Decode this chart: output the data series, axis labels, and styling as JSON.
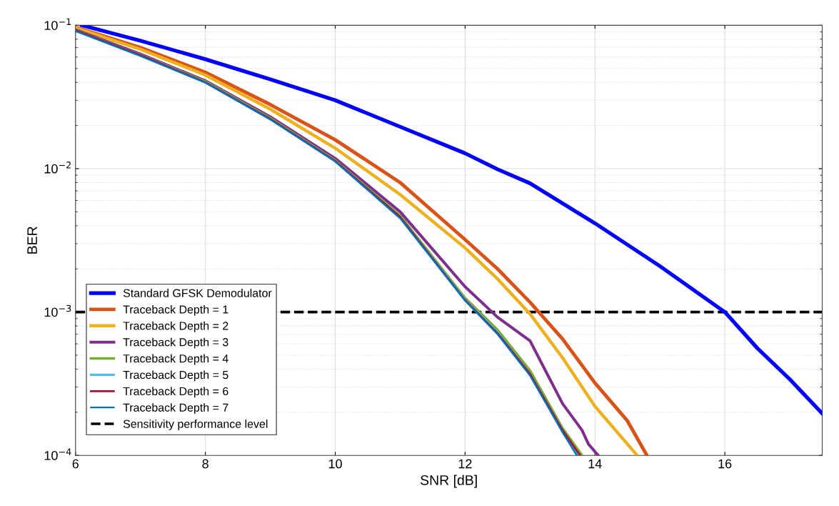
{
  "chart_data": {
    "type": "line",
    "xlabel": "SNR [dB]",
    "ylabel": "BER",
    "log": "y",
    "grid": true,
    "legend": "bottom left",
    "line_style": "solid",
    "marker": "none",
    "xlim": [
      6,
      17.5
    ],
    "xticks": [
      6,
      8,
      10,
      12,
      14,
      16
    ],
    "ylim": [
      0.0001,
      0.1
    ],
    "yticks": [
      {
        "value": 0.0001,
        "label": "10$^{−4}$"
      },
      {
        "value": 0.001,
        "label": "10$^{−3}$"
      },
      {
        "value": 0.01,
        "label": "10$^{−2}$"
      },
      {
        "value": 0.1,
        "label": "10$^{−1}$"
      }
    ],
    "series": [
      {
        "name": "Standard GFSK Demodulator",
        "color": "#0000ff",
        "x": [
          6.1,
          7,
          8,
          9,
          10,
          11,
          12,
          12.5,
          13,
          14,
          15,
          16,
          16.5,
          17,
          17.5
        ],
        "values": [
          0.1,
          0.078,
          0.058,
          0.042,
          0.03,
          0.0196,
          0.0128,
          0.0099,
          0.0079,
          0.00416,
          0.00209,
          0.001,
          0.00056,
          0.00034,
          0.000196
        ]
      },
      {
        "name": "Traceback Depth = 1",
        "color": "#d95319",
        "x": [
          6,
          7,
          8,
          9,
          10,
          11,
          12,
          12.5,
          13,
          13.5,
          14,
          14.5,
          14.8
        ],
        "values": [
          0.097,
          0.07,
          0.047,
          0.028,
          0.0159,
          0.008,
          0.0032,
          0.002,
          0.00117,
          0.00065,
          0.00032,
          0.000174,
          0.0001
        ]
      },
      {
        "name": "Traceback Depth = 2",
        "color": "#edb120",
        "x": [
          6,
          7,
          8,
          9,
          10,
          11,
          12,
          12.5,
          13,
          13.5,
          14,
          14.65
        ],
        "values": [
          0.096,
          0.068,
          0.045,
          0.026,
          0.0139,
          0.0066,
          0.0028,
          0.0017,
          0.00097,
          0.00048,
          0.00022,
          0.0001
        ]
      },
      {
        "name": "Traceback Depth = 3",
        "color": "#7e2f8e",
        "x": [
          6,
          7,
          8,
          9,
          10,
          11,
          12,
          12.5,
          13,
          13.5,
          13.8,
          13.9,
          14.05
        ],
        "values": [
          0.093,
          0.063,
          0.041,
          0.023,
          0.0118,
          0.005,
          0.0015,
          0.00092,
          0.00063,
          0.00023,
          0.00015,
          0.00012,
          0.0001
        ]
      },
      {
        "name": "Traceback Depth = 4",
        "color": "#77ac30",
        "x": [
          6,
          7,
          8,
          9,
          10,
          11,
          12,
          12.5,
          13,
          13.5,
          13.8
        ],
        "values": [
          0.092,
          0.062,
          0.0405,
          0.0225,
          0.0114,
          0.0047,
          0.00125,
          0.00075,
          0.00039,
          0.000155,
          0.0001
        ]
      },
      {
        "name": "Traceback Depth = 5",
        "color": "#4dbeee",
        "x": [
          6,
          7,
          8,
          9,
          10,
          11,
          12,
          12.5,
          13,
          13.5,
          13.75
        ],
        "values": [
          0.092,
          0.062,
          0.04,
          0.0222,
          0.0113,
          0.0046,
          0.00122,
          0.00072,
          0.00037,
          0.00015,
          0.0001
        ]
      },
      {
        "name": "Traceback Depth = 6",
        "color": "#a2142f",
        "x": [
          6,
          7,
          8,
          9,
          10,
          11,
          12,
          12.5,
          13,
          13.5,
          13.77
        ],
        "values": [
          0.092,
          0.062,
          0.04,
          0.0222,
          0.0113,
          0.0046,
          0.00121,
          0.00071,
          0.00037,
          0.00015,
          0.0001
        ]
      },
      {
        "name": "Traceback Depth = 7",
        "color": "#0072bd",
        "x": [
          6,
          7,
          8,
          9,
          10,
          11,
          12,
          12.5,
          13,
          13.5,
          13.72
        ],
        "values": [
          0.091,
          0.061,
          0.0398,
          0.022,
          0.0112,
          0.0045,
          0.0012,
          0.0007,
          0.00036,
          0.000145,
          0.0001
        ]
      }
    ],
    "ref_lines": [
      {
        "axis": "y",
        "value": 0.001,
        "label": "Sensitivity performance level",
        "color": "#000000",
        "line_style": "dashed"
      }
    ]
  }
}
